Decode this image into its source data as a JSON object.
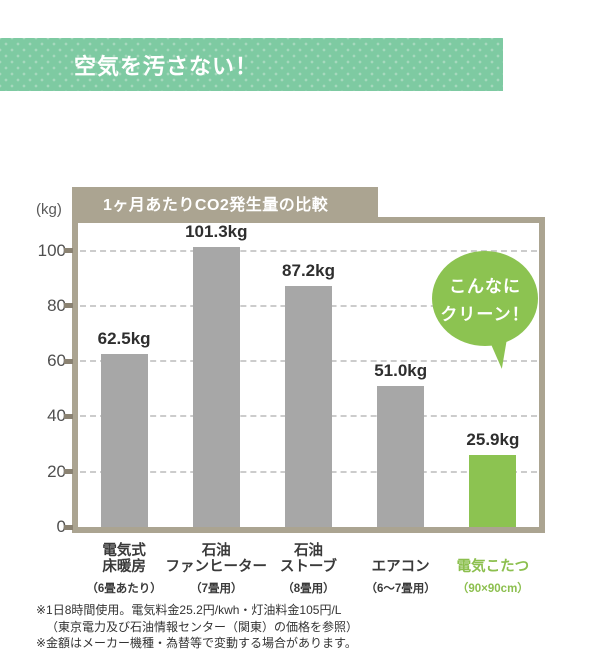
{
  "header": {
    "title": "空気を汚さない！"
  },
  "chart": {
    "title": "1ヶ月あたりCO2発生量の比較",
    "unit_label": "(kg)",
    "y_ticks": [
      100,
      80,
      60,
      40,
      20,
      0
    ],
    "bubble": {
      "line1": "こんなに",
      "line2": "クリーン！"
    }
  },
  "chart_data": {
    "type": "bar",
    "title": "1ヶ月あたりCO2発生量の比較",
    "ylabel": "(kg)",
    "ylim": [
      0,
      110
    ],
    "grid": true,
    "categories": [
      "電気式床暖房",
      "石油ファンヒーター",
      "石油ストーブ",
      "エアコン",
      "電気こたつ"
    ],
    "category_lines": [
      [
        "電気式",
        "床暖房"
      ],
      [
        "石油",
        "ファンヒーター"
      ],
      [
        "石油",
        "ストーブ"
      ],
      [
        "エアコン"
      ],
      [
        "電気こたつ"
      ]
    ],
    "category_sublabels": [
      "（6畳あたり）",
      "（7畳用）",
      "（8畳用）",
      "（6～7畳用）",
      "（90×90cm）"
    ],
    "values": [
      62.5,
      101.3,
      87.2,
      51.0,
      25.9
    ],
    "value_labels": [
      "62.5kg",
      "101.3kg",
      "87.2kg",
      "51.0kg",
      "25.9kg"
    ],
    "bar_colors": [
      "#a7a7a7",
      "#a7a7a7",
      "#a7a7a7",
      "#a7a7a7",
      "#8cc351"
    ],
    "highlight_index": 4,
    "annotation": "こんなにクリーン！",
    "legend": null
  },
  "colors": {
    "banner_bg": "#7ecaa2",
    "banner_dot": "#a6d8bd",
    "frame_taupe": "#aba491",
    "tick_mark": "#8a8272",
    "bar_gray": "#a7a7a7",
    "accent_green": "#8cc351",
    "green_text": "#8cbf4e",
    "gridline": "#cccccc",
    "text_dark": "#3a3a3a"
  },
  "footnotes": [
    "※1日8時間使用。電気料金25.2円/kwh・灯油料金105円/L",
    "（東京電力及び石油情報センター（関東）の価格を参照）",
    "※金額はメーカー機種・為替等で変動する場合があります。"
  ]
}
